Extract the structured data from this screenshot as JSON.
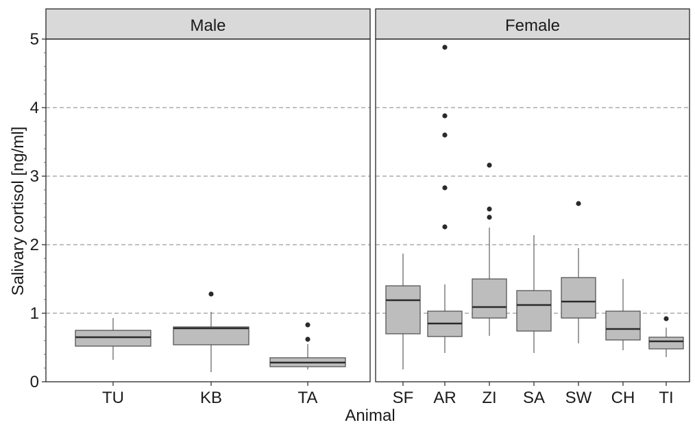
{
  "chart_data": {
    "type": "boxplot",
    "xlabel": "Animal",
    "ylabel": "Salivary cortisol [ng/ml]",
    "ylim": [
      0,
      5
    ],
    "yticks": [
      "0",
      "1",
      "2",
      "3",
      "4",
      "5"
    ],
    "grid": "horizontal dashed",
    "box_color": "#bdbdbd",
    "strip_color": "#d9d9d9",
    "panels": [
      {
        "title": "Male",
        "groups": [
          {
            "name": "TU",
            "low": 0.32,
            "q1": 0.52,
            "median": 0.65,
            "q3": 0.75,
            "high": 0.93,
            "outliers": []
          },
          {
            "name": "KB",
            "low": 0.14,
            "q1": 0.54,
            "median": 0.78,
            "q3": 0.8,
            "high": 1.02,
            "outliers": [
              1.28
            ]
          },
          {
            "name": "TA",
            "low": 0.18,
            "q1": 0.22,
            "median": 0.28,
            "q3": 0.35,
            "high": 0.55,
            "outliers": [
              0.62,
              0.83
            ]
          }
        ]
      },
      {
        "title": "Female",
        "groups": [
          {
            "name": "SF",
            "low": 0.18,
            "q1": 0.7,
            "median": 1.19,
            "q3": 1.4,
            "high": 1.87,
            "outliers": []
          },
          {
            "name": "AR",
            "low": 0.42,
            "q1": 0.66,
            "median": 0.85,
            "q3": 1.03,
            "high": 1.42,
            "outliers": [
              2.26,
              2.83,
              3.6,
              3.88,
              4.88
            ]
          },
          {
            "name": "ZI",
            "low": 0.67,
            "q1": 0.93,
            "median": 1.09,
            "q3": 1.5,
            "high": 2.25,
            "outliers": [
              2.4,
              2.52,
              3.16
            ]
          },
          {
            "name": "SA",
            "low": 0.42,
            "q1": 0.74,
            "median": 1.12,
            "q3": 1.33,
            "high": 2.14,
            "outliers": []
          },
          {
            "name": "SW",
            "low": 0.56,
            "q1": 0.93,
            "median": 1.17,
            "q3": 1.52,
            "high": 1.95,
            "outliers": [
              2.6
            ]
          },
          {
            "name": "CH",
            "low": 0.46,
            "q1": 0.61,
            "median": 0.77,
            "q3": 1.03,
            "high": 1.5,
            "outliers": []
          },
          {
            "name": "TI",
            "low": 0.36,
            "q1": 0.48,
            "median": 0.59,
            "q3": 0.65,
            "high": 0.79,
            "outliers": [
              0.92
            ]
          }
        ]
      }
    ]
  }
}
